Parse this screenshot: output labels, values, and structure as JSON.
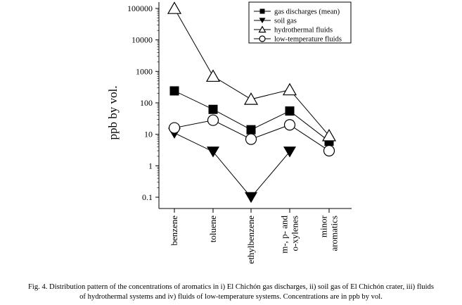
{
  "chart_data": {
    "type": "line",
    "y_scale": "log",
    "ylabel": "ppb by vol.",
    "ylim": [
      0.05,
      150000
    ],
    "y_ticks": [
      0.1,
      1,
      10,
      100,
      1000,
      10000,
      100000
    ],
    "y_tick_labels": [
      "0.1",
      "1",
      "10",
      "100",
      "1000",
      "10000",
      "100000"
    ],
    "categories": [
      [
        "benzene"
      ],
      [
        "toluene"
      ],
      [
        "ethylbenzene"
      ],
      [
        "m-, p- and",
        "o-xylenes"
      ],
      [
        "minor",
        "aromatics"
      ]
    ],
    "legend_position": "top-right",
    "series": [
      {
        "name": "gas discharges (mean)",
        "marker": "square-filled",
        "values": [
          240,
          62,
          14,
          55,
          6
        ]
      },
      {
        "name": "soil gas",
        "marker": "triangle-down-filled",
        "values": [
          11,
          2.8,
          0.1,
          2.8,
          null
        ]
      },
      {
        "name": "hydrothermal fluids",
        "marker": "triangle-up-open",
        "values": [
          100000,
          700,
          130,
          260,
          9
        ]
      },
      {
        "name": "low-temperature fluids",
        "marker": "circle-open",
        "values": [
          16,
          28,
          7,
          20,
          3
        ]
      }
    ]
  },
  "caption": {
    "line1": "Fig. 4. Distribution pattern of the concentrations of aromatics in i) El Chichón gas discharges, ii) soil gas of El Chichón crater, iii) fluids",
    "line2": "of hydrothermal systems and iv) fluids of low-temperature systems. Concentrations are in ppb by vol."
  }
}
